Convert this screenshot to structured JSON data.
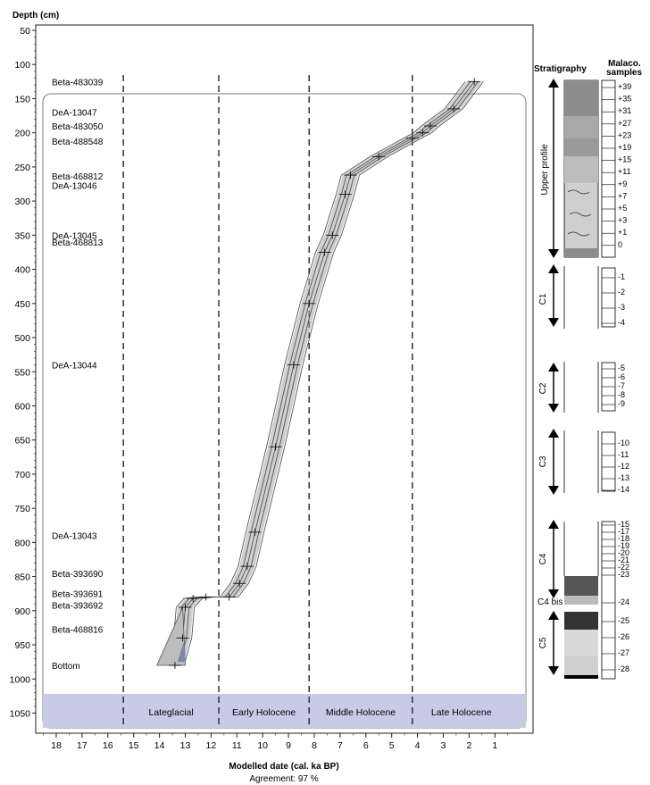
{
  "chart_data": {
    "type": "line",
    "title": "",
    "ylabel": "Depth (cm)",
    "xlabel": "Modelled date (cal. ka BP)",
    "agreement": "Agreement: 97 %",
    "x_reversed": true,
    "xlim": [
      19,
      0
    ],
    "ylim": [
      1060,
      40
    ],
    "xticks": [
      18,
      17,
      16,
      15,
      14,
      13,
      12,
      11,
      10,
      9,
      8,
      7,
      6,
      5,
      4,
      3,
      2,
      1
    ],
    "yticks": [
      50,
      100,
      150,
      200,
      250,
      300,
      350,
      400,
      450,
      500,
      550,
      600,
      650,
      700,
      750,
      800,
      850,
      900,
      950,
      1000,
      1050
    ],
    "series": [
      {
        "values": [
          [
            13.4,
            980
          ],
          [
            13.1,
            940
          ],
          [
            13.0,
            895
          ],
          [
            12.7,
            882
          ],
          [
            12.2,
            880
          ],
          [
            11.3,
            880
          ],
          [
            10.9,
            860
          ],
          [
            10.6,
            835
          ],
          [
            10.3,
            785
          ],
          [
            9.5,
            660
          ],
          [
            8.8,
            540
          ],
          [
            8.2,
            450
          ],
          [
            7.6,
            375
          ],
          [
            7.3,
            350
          ],
          [
            6.8,
            290
          ],
          [
            6.6,
            262
          ],
          [
            5.5,
            235
          ],
          [
            4.2,
            208
          ],
          [
            3.8,
            200
          ],
          [
            3.5,
            190
          ],
          [
            2.6,
            165
          ],
          [
            1.8,
            125
          ]
        ]
      }
    ],
    "samples": [
      {
        "label": "Beta-483039",
        "depth": 125
      },
      {
        "label": "DeA-13047",
        "depth": 170
      },
      {
        "label": "Beta-483050",
        "depth": 190
      },
      {
        "label": "Beta-488548",
        "depth": 212
      },
      {
        "label": "Beta-468812",
        "depth": 263
      },
      {
        "label": "DeA-13046",
        "depth": 277
      },
      {
        "label": "DeA-13045",
        "depth": 350
      },
      {
        "label": "Beta-468813",
        "depth": 360
      },
      {
        "label": "DeA-13044",
        "depth": 540
      },
      {
        "label": "DeA-13043",
        "depth": 790
      },
      {
        "label": "Beta-393690",
        "depth": 845
      },
      {
        "label": "Beta-393691",
        "depth": 875
      },
      {
        "label": "Beta-393692",
        "depth": 892
      },
      {
        "label": "Beta-468816",
        "depth": 927
      },
      {
        "label": "Bottom",
        "depth": 980
      }
    ],
    "periods": [
      {
        "label": "Lateglacial",
        "from": 15.4,
        "to": 11.7
      },
      {
        "label": "Early Holocene",
        "from": 11.7,
        "to": 8.2
      },
      {
        "label": "Middle Holocene",
        "from": 8.2,
        "to": 4.2
      },
      {
        "label": "Late Holocene",
        "from": 4.2,
        "to": 0.4
      }
    ]
  },
  "stratigraphy": {
    "title": "Stratigraphy",
    "malaco_title_1": "Malaco.",
    "malaco_title_2": "samples",
    "upper_profile_label": "Upper profile",
    "cores": [
      "C1",
      "C2",
      "C3",
      "C4",
      "C4 bis",
      "C5"
    ],
    "upper_samples": [
      "+39",
      "+35",
      "+31",
      "+27",
      "+23",
      "+19",
      "+15",
      "+11",
      "+9",
      "+7",
      "+5",
      "+3",
      "+1",
      "0"
    ],
    "c1_samples": [
      "-1",
      "-2",
      "-3",
      "-4"
    ],
    "c2_samples": [
      "-5",
      "-6",
      "-7",
      "-8",
      "-9"
    ],
    "c3_samples": [
      "-10",
      "-11",
      "-12",
      "-13",
      "-14"
    ],
    "c4_samples": [
      "-15",
      "-17",
      "-18",
      "-19",
      "-20",
      "-21",
      "-22",
      "-23"
    ],
    "c4bis_samples": [
      "-24"
    ],
    "c5_samples": [
      "-25",
      "-26",
      "-27",
      "-28"
    ],
    "colors": {
      "dark": "#3b3b3b",
      "mid": "#8c8c8c",
      "light": "#cfcfcf",
      "period_band": "#c9cbe6"
    }
  }
}
